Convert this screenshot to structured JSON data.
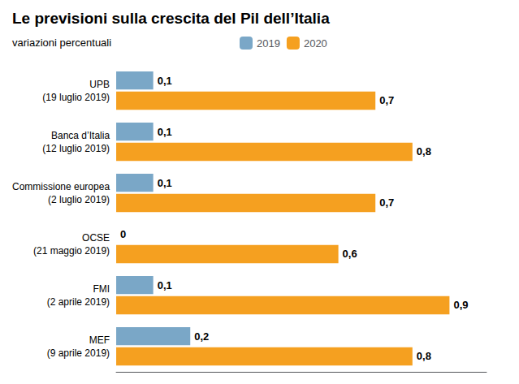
{
  "chart_data": {
    "type": "bar",
    "orientation": "horizontal",
    "title": "Le previsioni sulla crescita del Pil dell’Italia",
    "subtitle": "variazioni percentuali",
    "categories": [
      "UPB\n(19 luglio 2019)",
      "Banca d’Italia\n(12 luglio 2019)",
      "Commissione europea\n(2 luglio 2019)",
      "OCSE\n(21 maggio 2019)",
      "FMI\n(2 aprile 2019)",
      "MEF\n(9 aprile 2019)"
    ],
    "series": [
      {
        "name": "2019",
        "color": "#7aa7c7",
        "values": [
          0.1,
          0.1,
          0.1,
          0.0,
          0.1,
          0.2
        ],
        "value_labels": [
          "0,1",
          "0,1",
          "0,1",
          "0",
          "0,1",
          "0,2"
        ]
      },
      {
        "name": "2020",
        "color": "#f5a020",
        "values": [
          0.7,
          0.8,
          0.7,
          0.6,
          0.9,
          0.8
        ],
        "value_labels": [
          "0,7",
          "0,8",
          "0,7",
          "0,6",
          "0,9",
          "0,8"
        ]
      }
    ],
    "xlim": [
      0,
      1.0
    ],
    "data_labels": true,
    "tick_labels": "y",
    "grid": false,
    "legend": "top"
  }
}
